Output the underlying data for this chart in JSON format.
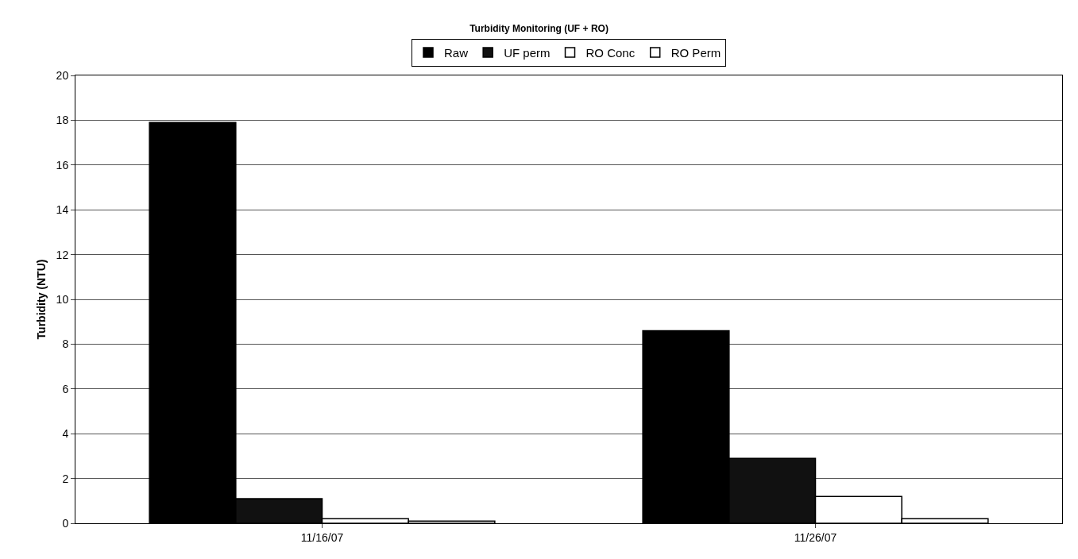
{
  "chart_data": {
    "type": "bar",
    "title": "Turbidity Monitoring (UF + RO)",
    "ylabel": "Turbidity (NTU)",
    "categories": [
      "11/16/07",
      "11/26/07"
    ],
    "series": [
      {
        "name": "Raw",
        "color": "#000000",
        "values": [
          17.9,
          8.6
        ]
      },
      {
        "name": "UF perm",
        "color": "#111111",
        "values": [
          1.1,
          2.9
        ]
      },
      {
        "name": "RO Conc",
        "color": "#ffffff",
        "values": [
          0.2,
          1.2
        ]
      },
      {
        "name": "RO Perm",
        "color": "#ffffff",
        "values": [
          0.1,
          0.2
        ]
      }
    ],
    "ylim": [
      0,
      20
    ],
    "yticks": [
      0,
      2,
      4,
      6,
      8,
      10,
      12,
      14,
      16,
      18,
      20
    ],
    "grid": "y",
    "legend": "top"
  }
}
